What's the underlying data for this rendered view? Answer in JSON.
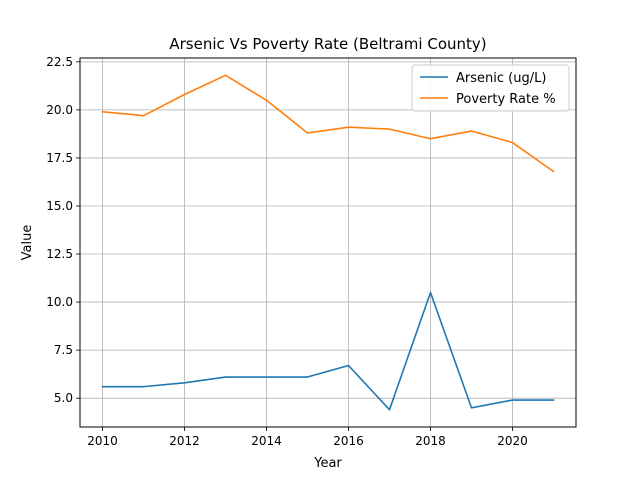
{
  "chart_data": {
    "type": "line",
    "title": "Arsenic Vs Poverty Rate (Beltrami County)",
    "xlabel": "Year",
    "ylabel": "Value",
    "x": [
      2010,
      2011,
      2012,
      2013,
      2014,
      2015,
      2016,
      2017,
      2018,
      2019,
      2020,
      2021
    ],
    "xlim": [
      2009.45,
      2021.55
    ],
    "ylim": [
      3.5,
      22.7
    ],
    "xticks": [
      2010,
      2012,
      2014,
      2016,
      2018,
      2020
    ],
    "xtick_labels": [
      "2010",
      "2012",
      "2014",
      "2016",
      "2018",
      "2020"
    ],
    "yticks": [
      5.0,
      7.5,
      10.0,
      12.5,
      15.0,
      17.5,
      20.0,
      22.5
    ],
    "ytick_labels": [
      "5.0",
      "7.5",
      "10.0",
      "12.5",
      "15.0",
      "17.5",
      "20.0",
      "22.5"
    ],
    "grid": true,
    "legend_position": "top-right",
    "series": [
      {
        "name": "Arsenic (ug/L)",
        "color": "#1f77b4",
        "values": [
          5.6,
          5.6,
          5.8,
          6.1,
          6.1,
          6.1,
          6.7,
          4.4,
          10.5,
          4.5,
          4.9,
          4.9
        ]
      },
      {
        "name": "Poverty Rate %",
        "color": "#ff7f0e",
        "values": [
          19.9,
          19.7,
          20.8,
          21.8,
          20.5,
          18.8,
          19.1,
          19.0,
          18.5,
          18.9,
          18.3,
          16.8
        ]
      }
    ]
  }
}
